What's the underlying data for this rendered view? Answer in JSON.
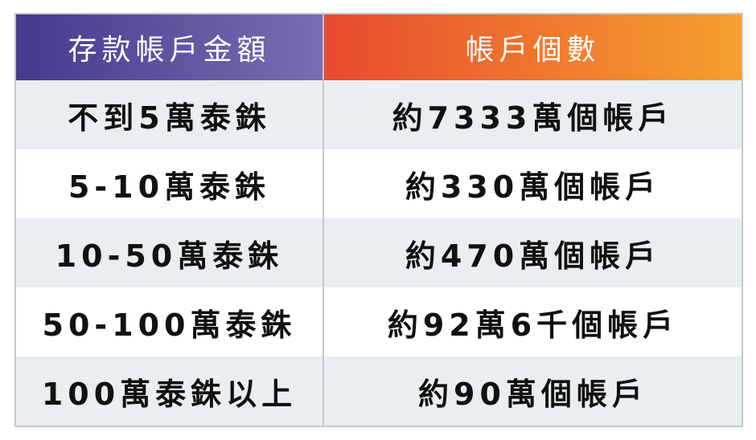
{
  "table": {
    "headers": [
      "存款帳戶金額",
      "帳戶個數"
    ],
    "header_colors": {
      "left": [
        "#443a8e",
        "#7a6db2"
      ],
      "right": [
        "#e84a2e",
        "#f5a02e"
      ]
    },
    "rows": [
      [
        "不到5萬泰銖",
        "約7333萬個帳戶"
      ],
      [
        "5-10萬泰銖",
        "約330萬個帳戶"
      ],
      [
        "10-50萬泰銖",
        "約470萬個帳戶"
      ],
      [
        "50-100萬泰銖",
        "約92萬6千個帳戶"
      ],
      [
        "100萬泰銖以上",
        "約90萬個帳戶"
      ]
    ]
  }
}
